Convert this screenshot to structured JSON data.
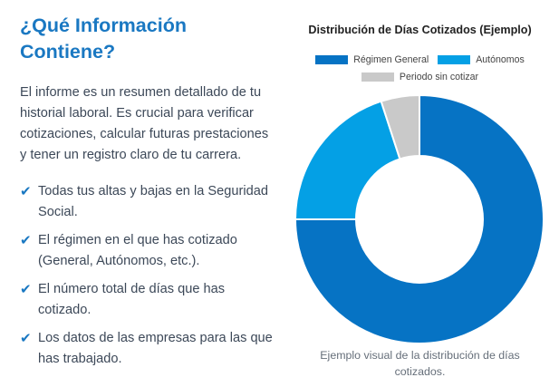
{
  "info": {
    "title": "¿Qué Información Contiene?",
    "intro": "El informe es un resumen detallado de tu historial laboral. Es crucial para verificar cotizaciones, calcular futuras prestaciones y tener un registro claro de tu carrera.",
    "check_icon": "✔",
    "bullets": [
      "Todas tus altas y bajas en la Seguridad Social.",
      "El régimen en el que has cotizado (General, Autónomos, etc.).",
      "El número total de días que has cotizado.",
      "Los datos de las empresas para las que has trabajado."
    ]
  },
  "chart_data": {
    "type": "pie",
    "variant": "donut",
    "title": "Distribución de Días Cotizados (Ejemplo)",
    "legend_position": "top",
    "categories": [
      "Régimen General",
      "Autónomos",
      "Periodo sin cotizar"
    ],
    "values": [
      75,
      20,
      5
    ],
    "colors": [
      "#0673c4",
      "#04a0e5",
      "#c9c9c9"
    ],
    "caption": "Ejemplo visual de la distribución de días cotizados."
  },
  "colors": {
    "accent": "#1a78c2",
    "body_text": "#3c4858"
  }
}
